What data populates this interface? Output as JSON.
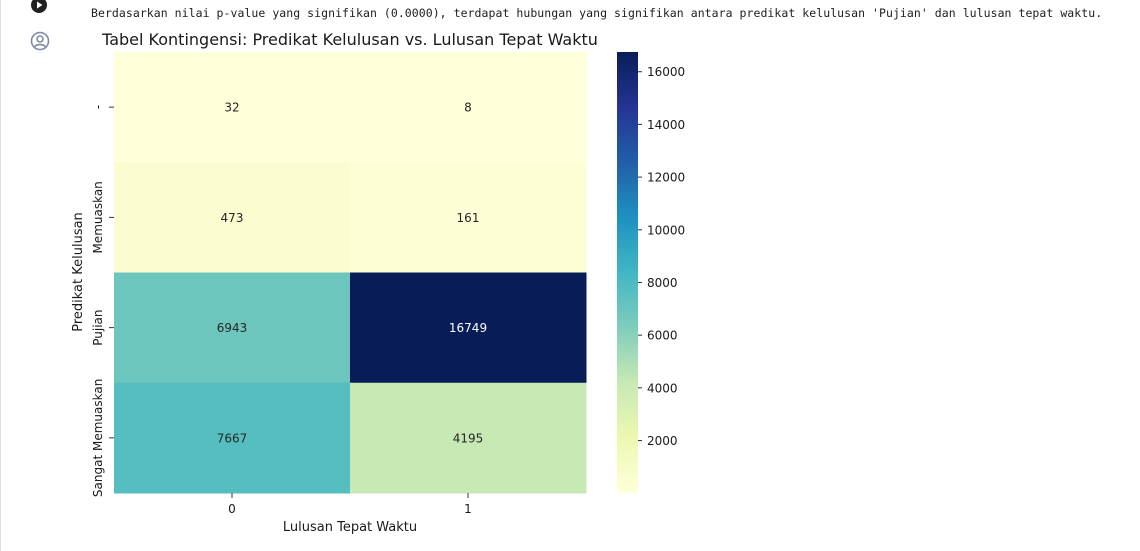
{
  "cell": {
    "output_text": "Berdasarkan nilai p-value yang signifikan (0.0000), terdapat hubungan yang signifikan antara predikat kelulusan 'Pujian' dan lulusan tepat waktu.",
    "run_icon": "play-circle-icon",
    "output_icon": "user-avatar-icon"
  },
  "chart_data": {
    "type": "heatmap",
    "title": "Tabel Kontingensi: Predikat Kelulusan vs. Lulusan Tepat Waktu",
    "xlabel": "Lulusan Tepat Waktu",
    "ylabel": "Predikat Kelulusan",
    "x_categories": [
      "0",
      "1"
    ],
    "y_categories": [
      "-",
      "Memuaskan",
      "Pujian",
      "Sangat Memuaskan"
    ],
    "values": [
      [
        32,
        8
      ],
      [
        473,
        161
      ],
      [
        6943,
        16749
      ],
      [
        7667,
        4195
      ]
    ],
    "colormap": "YlGnBu",
    "colorbar": {
      "vmin": 8,
      "vmax": 16749,
      "ticks": [
        2000,
        4000,
        6000,
        8000,
        10000,
        12000,
        14000,
        16000
      ]
    }
  }
}
